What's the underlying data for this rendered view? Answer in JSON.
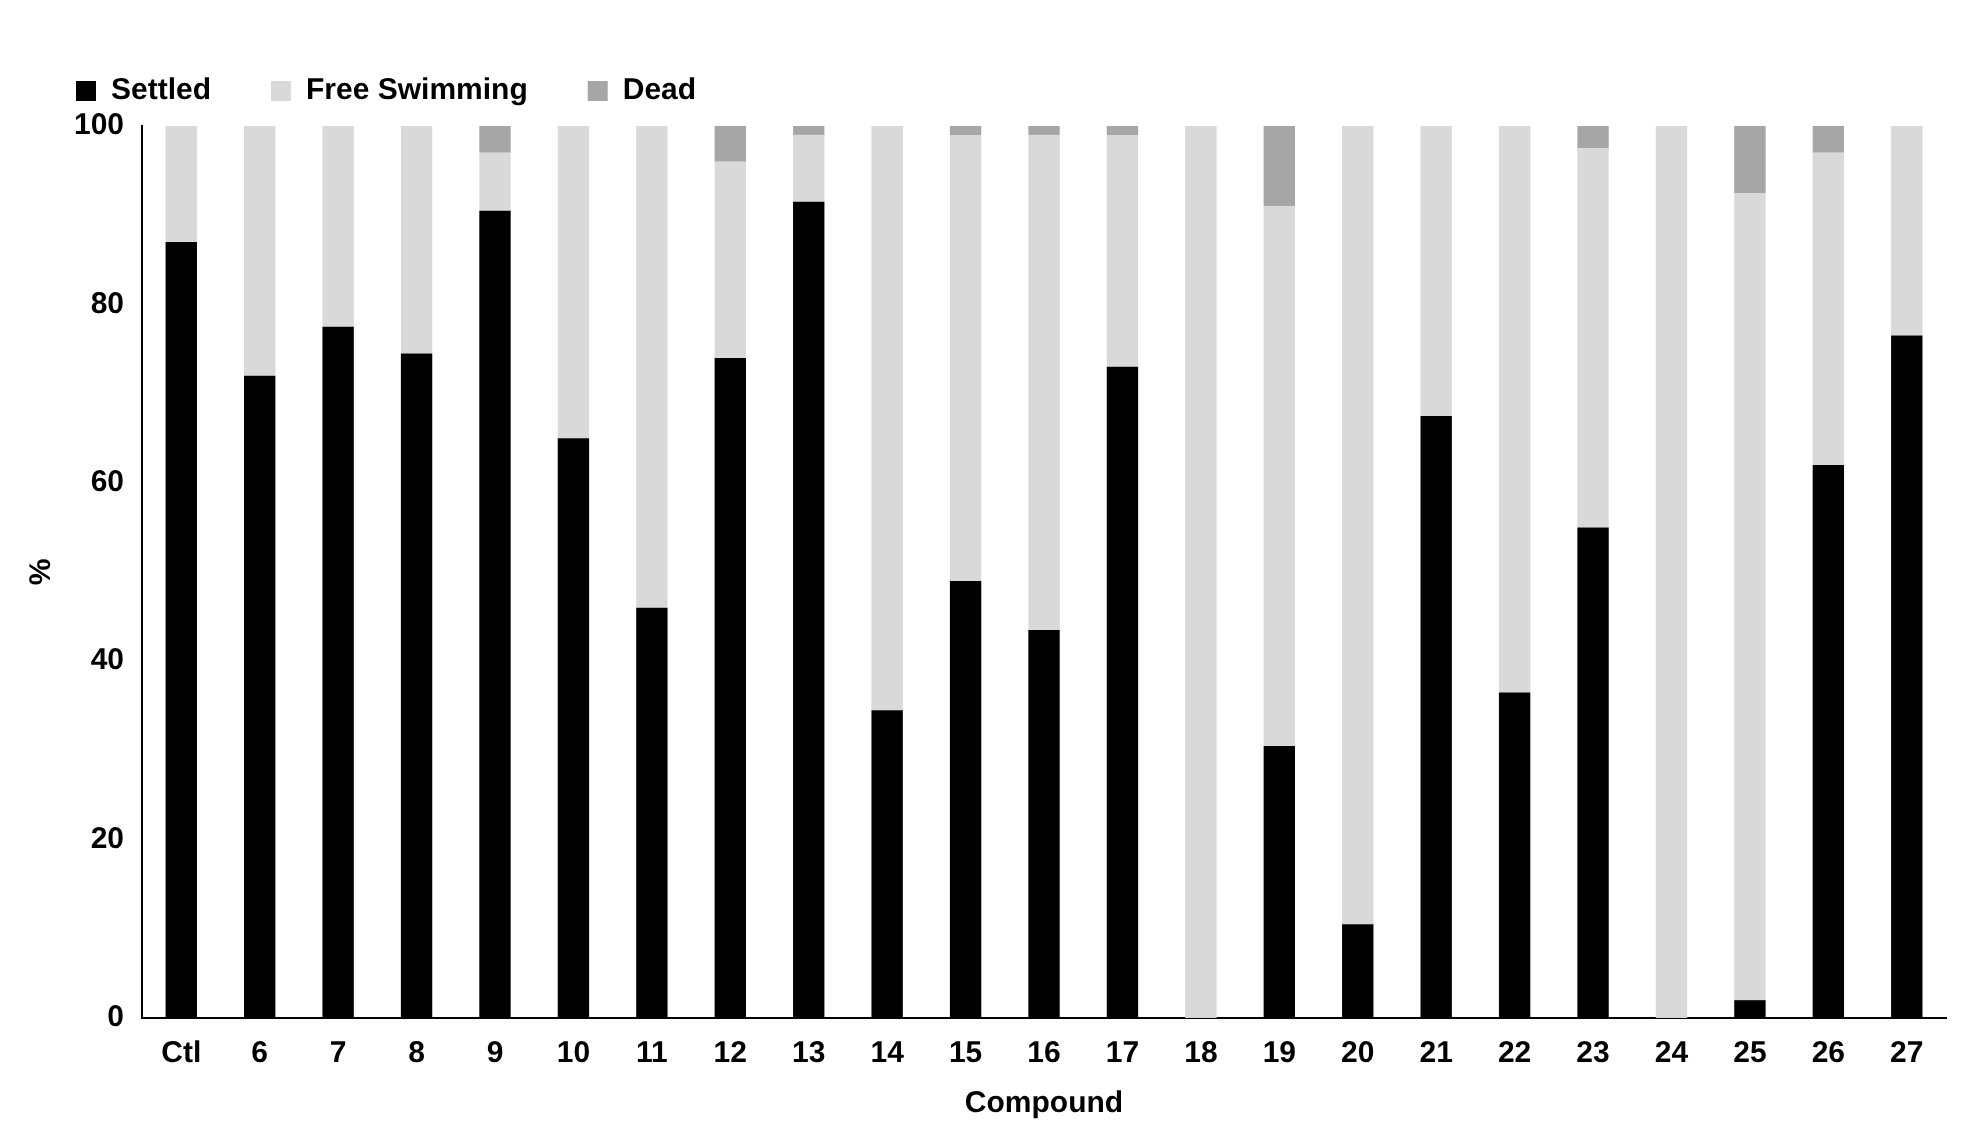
{
  "chart_data": {
    "type": "bar",
    "stacked": true,
    "xlabel": "Compound",
    "ylabel": "%",
    "categories": [
      "Ctl",
      "6",
      "7",
      "8",
      "9",
      "10",
      "11",
      "12",
      "13",
      "14",
      "15",
      "16",
      "17",
      "18",
      "19",
      "20",
      "21",
      "22",
      "23",
      "24",
      "25",
      "26",
      "27"
    ],
    "series": [
      {
        "name": "Settled",
        "color": "#000000",
        "values": [
          87,
          72,
          77.5,
          74.5,
          90.5,
          65,
          46,
          74,
          91.5,
          34.5,
          49,
          43.5,
          73,
          0,
          30.5,
          10.5,
          67.5,
          36.5,
          55,
          0,
          2,
          62,
          76.5
        ]
      },
      {
        "name": "Free Swimming",
        "color": "#d9d9d9",
        "values": [
          13,
          28,
          22.5,
          25.5,
          6.5,
          35,
          54,
          22,
          7.5,
          65.5,
          50,
          55.5,
          26,
          100,
          60.5,
          89.5,
          32.5,
          63.5,
          42.5,
          100,
          90.5,
          35,
          23.5
        ]
      },
      {
        "name": "Dead",
        "color": "#a6a6a6",
        "values": [
          0,
          0,
          0,
          0,
          3,
          0,
          0,
          4,
          1,
          0,
          1,
          1,
          1,
          0,
          9,
          0,
          0,
          0,
          2.5,
          0,
          7.5,
          3,
          0
        ]
      }
    ],
    "ylim": [
      0,
      100
    ],
    "yticks": [
      0,
      20,
      40,
      60,
      80,
      100
    ],
    "grid": false,
    "legend": "top left"
  }
}
